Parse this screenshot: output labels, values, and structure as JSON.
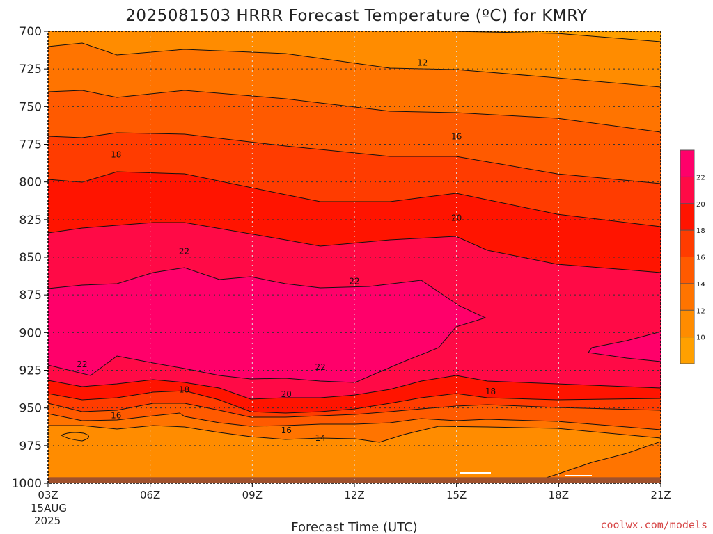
{
  "title": "2025081503 HRRR Forecast Temperature (ºC) for KMRY",
  "xlabel": "Forecast Time (UTC)",
  "credit": "coolwx.com/models",
  "date_label": {
    "day": "15AUG",
    "year": "2025"
  },
  "chart_data": {
    "type": "heatmap",
    "title": "2025081503 HRRR Forecast Temperature (ºC) for KMRY",
    "xlabel": "Forecast Time (UTC)",
    "ylabel": "",
    "x_ticks": [
      "03Z",
      "06Z",
      "09Z",
      "12Z",
      "15Z",
      "18Z",
      "21Z"
    ],
    "y_ticks": [
      700,
      725,
      750,
      775,
      800,
      825,
      850,
      875,
      900,
      925,
      950,
      975,
      1000
    ],
    "xlim_hours": [
      3,
      21
    ],
    "ylim_hpa": [
      700,
      1000
    ],
    "y_axis": "pressure (hPa), increasing downward",
    "grid": true,
    "colorbar": {
      "placement": "right",
      "levels": [
        8,
        10,
        12,
        14,
        16,
        18,
        20,
        22,
        24
      ],
      "tick_labels": [
        "10",
        "12",
        "14",
        "16",
        "18",
        "20",
        "22"
      ],
      "colors": [
        "#ffa000",
        "#ff8c00",
        "#ff7400",
        "#ff5a00",
        "#ff3c00",
        "#ff1400",
        "#ff0a46",
        "#ff006a"
      ]
    },
    "contour_labels": [
      {
        "text": "12",
        "hour": 14.0,
        "hpa": 721
      },
      {
        "text": "16",
        "hour": 15.0,
        "hpa": 770
      },
      {
        "text": "18",
        "hour": 5.0,
        "hpa": 782
      },
      {
        "text": "20",
        "hour": 15.0,
        "hpa": 824
      },
      {
        "text": "22",
        "hour": 7.0,
        "hpa": 846
      },
      {
        "text": "22",
        "hour": 12.0,
        "hpa": 866
      },
      {
        "text": "22",
        "hour": 4.0,
        "hpa": 921
      },
      {
        "text": "22",
        "hour": 11.0,
        "hpa": 923
      },
      {
        "text": "20",
        "hour": 10.0,
        "hpa": 941
      },
      {
        "text": "18",
        "hour": 7.0,
        "hpa": 938
      },
      {
        "text": "18",
        "hour": 16.0,
        "hpa": 939
      },
      {
        "text": "16",
        "hour": 5.0,
        "hpa": 955
      },
      {
        "text": "16",
        "hour": 10.0,
        "hpa": 965
      },
      {
        "text": "14",
        "hour": 11.0,
        "hpa": 970
      }
    ],
    "surface_band_hpa": [
      996,
      1000
    ],
    "surface_color": "#a0522d"
  }
}
